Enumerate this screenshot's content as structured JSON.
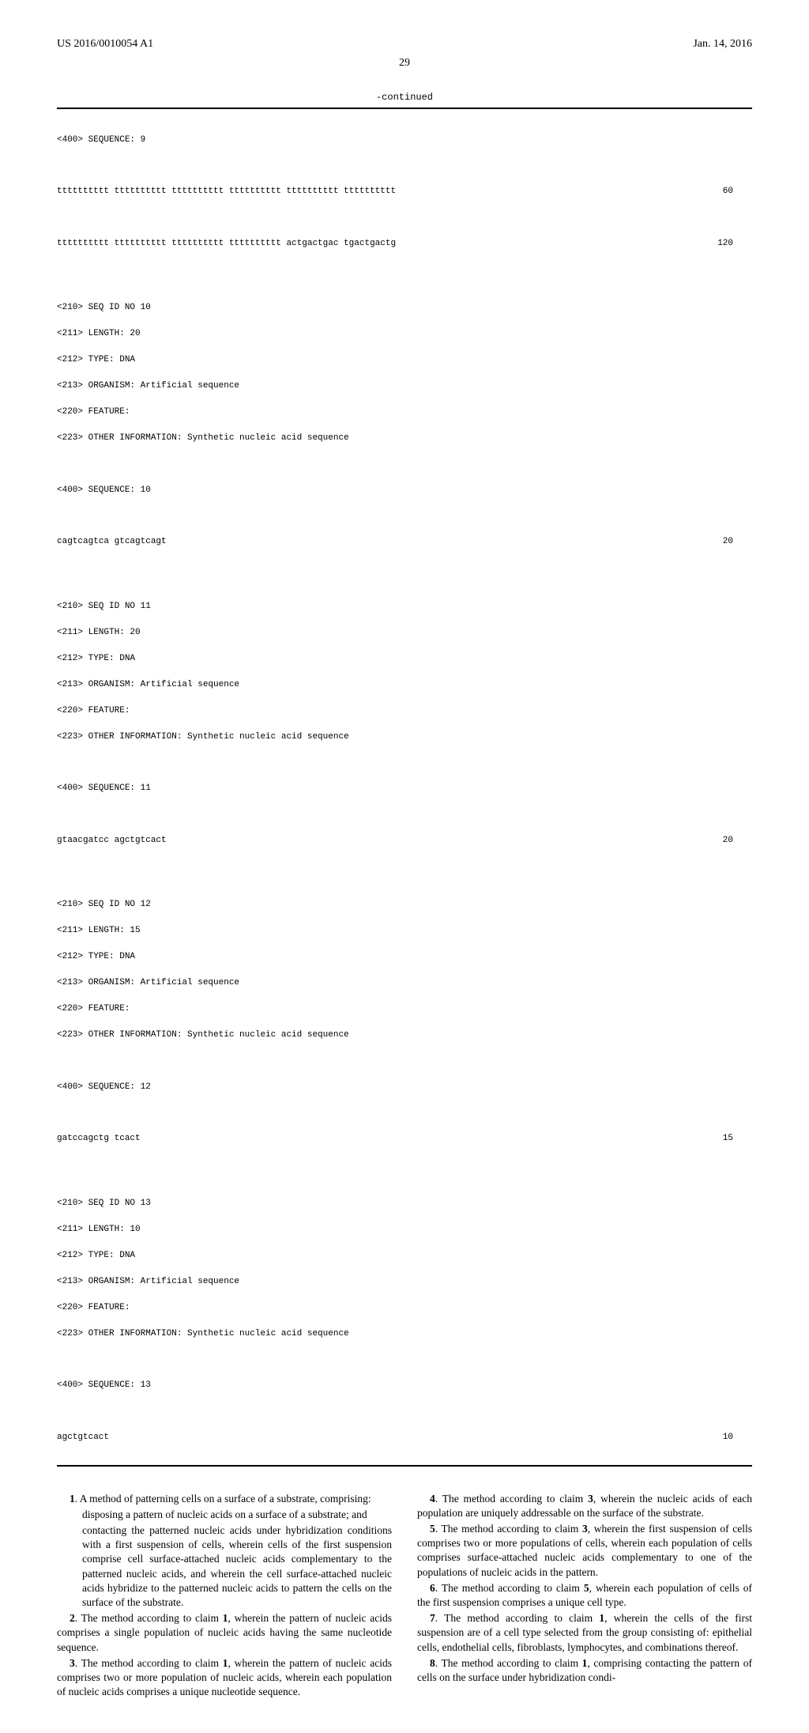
{
  "header": {
    "left": "US 2016/0010054 A1",
    "right": "Jan. 14, 2016"
  },
  "pagenum": "29",
  "continued": "-continued",
  "seq": {
    "s9": {
      "hdr": "<400> SEQUENCE: 9",
      "l1": {
        "t": "tttttttttt tttttttttt tttttttttt tttttttttt tttttttttt tttttttttt",
        "n": "60"
      },
      "l2": {
        "t": "tttttttttt tttttttttt tttttttttt tttttttttt actgactgac tgactgactg",
        "n": "120"
      }
    },
    "s10": {
      "a": "<210> SEQ ID NO 10",
      "b": "<211> LENGTH: 20",
      "c": "<212> TYPE: DNA",
      "d": "<213> ORGANISM: Artificial sequence",
      "e": "<220> FEATURE:",
      "f": "<223> OTHER INFORMATION: Synthetic nucleic acid sequence",
      "hdr": "<400> SEQUENCE: 10",
      "l": {
        "t": "cagtcagtca gtcagtcagt",
        "n": "20"
      }
    },
    "s11": {
      "a": "<210> SEQ ID NO 11",
      "b": "<211> LENGTH: 20",
      "c": "<212> TYPE: DNA",
      "d": "<213> ORGANISM: Artificial sequence",
      "e": "<220> FEATURE:",
      "f": "<223> OTHER INFORMATION: Synthetic nucleic acid sequence",
      "hdr": "<400> SEQUENCE: 11",
      "l": {
        "t": "gtaacgatcc agctgtcact",
        "n": "20"
      }
    },
    "s12": {
      "a": "<210> SEQ ID NO 12",
      "b": "<211> LENGTH: 15",
      "c": "<212> TYPE: DNA",
      "d": "<213> ORGANISM: Artificial sequence",
      "e": "<220> FEATURE:",
      "f": "<223> OTHER INFORMATION: Synthetic nucleic acid sequence",
      "hdr": "<400> SEQUENCE: 12",
      "l": {
        "t": "gatccagctg tcact",
        "n": "15"
      }
    },
    "s13": {
      "a": "<210> SEQ ID NO 13",
      "b": "<211> LENGTH: 10",
      "c": "<212> TYPE: DNA",
      "d": "<213> ORGANISM: Artificial sequence",
      "e": "<220> FEATURE:",
      "f": "<223> OTHER INFORMATION: Synthetic nucleic acid sequence",
      "hdr": "<400> SEQUENCE: 13",
      "l": {
        "t": "agctgtcact",
        "n": "10"
      }
    }
  },
  "claims": {
    "c1": {
      "lead": "1",
      "text": ". A method of patterning cells on a surface of a substrate, comprising:"
    },
    "c1a": "disposing a pattern of nucleic acids on a surface of a substrate; and",
    "c1b": "contacting the patterned nucleic acids under hybridization conditions with a first suspension of cells, wherein cells of the first suspension comprise cell surface-attached nucleic acids complementary to the patterned nucleic acids, and wherein the cell surface-attached nucleic acids hybridize to the patterned nucleic acids to pattern the cells on the surface of the substrate.",
    "c2": {
      "lead": "2",
      "text": ". The method according to claim ",
      "ref": "1",
      "tail": ", wherein the pattern of nucleic acids comprises a single population of nucleic acids having the same nucleotide sequence."
    },
    "c3": {
      "lead": "3",
      "text": ". The method according to claim ",
      "ref": "1",
      "tail": ", wherein the pattern of nucleic acids comprises two or more population of nucleic acids, wherein each population of nucleic acids comprises a unique nucleotide sequence."
    },
    "c4": {
      "lead": "4",
      "text": ". The method according to claim ",
      "ref": "3",
      "tail": ", wherein the nucleic acids of each population are uniquely addressable on the surface of the substrate."
    },
    "c5": {
      "lead": "5",
      "text": ". The method according to claim ",
      "ref": "3",
      "tail": ", wherein the first suspension of cells comprises two or more populations of cells, wherein each population of cells comprises surface-attached nucleic acids complementary to one of the populations of nucleic acids in the pattern."
    },
    "c6": {
      "lead": "6",
      "text": ". The method according to claim ",
      "ref": "5",
      "tail": ", wherein each population of cells of the first suspension comprises a unique cell type."
    },
    "c7": {
      "lead": "7",
      "text": ". The method according to claim ",
      "ref": "1",
      "tail": ", wherein the cells of the first suspension are of a cell type selected from the group consisting of: epithelial cells, endothelial cells, fibroblasts, lymphocytes, and combinations thereof."
    },
    "c8": {
      "lead": "8",
      "text": ". The method according to claim ",
      "ref": "1",
      "tail": ", comprising contacting the pattern of cells on the surface under hybridization condi-"
    }
  }
}
